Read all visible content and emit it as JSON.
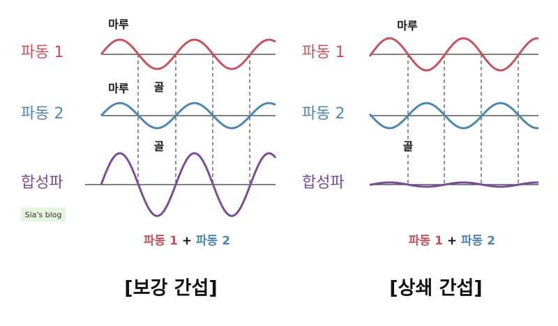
{
  "watermark": "Sia's blog",
  "panels": [
    {
      "labels": {
        "wave1": "파동 1",
        "wave2": "파동 2",
        "sum": "합성파"
      },
      "annotations": {
        "crest1": "마루",
        "crest2": "마루",
        "trough1": "골",
        "trough2": "골"
      },
      "formula": {
        "a": "파동 1",
        "plus": "+",
        "b": "파동 2"
      },
      "caption": "[보강 간섭]"
    },
    {
      "labels": {
        "wave1": "파동 1",
        "wave2": "파동 2",
        "sum": "합성파"
      },
      "annotations": {
        "crest1": "마루",
        "trough1": "골"
      },
      "formula": {
        "a": "파동 1",
        "plus": "+",
        "b": "파동 2"
      },
      "caption": "[상쇄 간섭]"
    }
  ]
}
